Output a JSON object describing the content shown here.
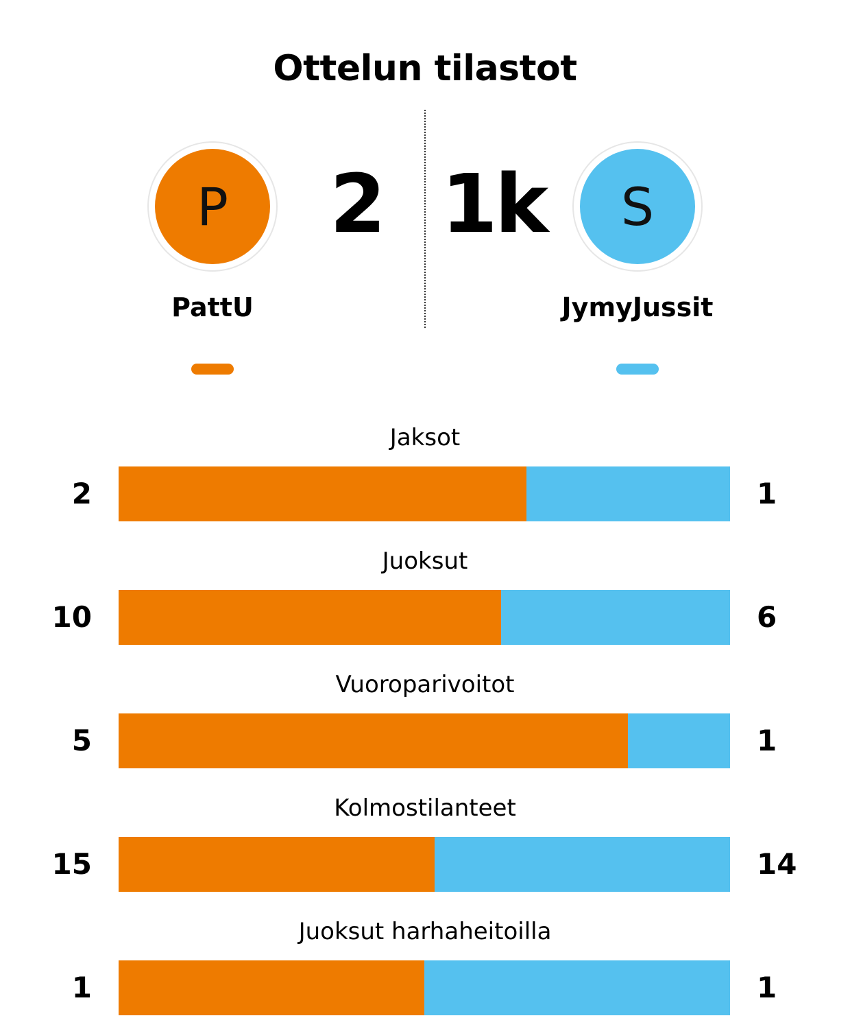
{
  "title": "Ottelun tilastot",
  "home": {
    "name": "PattU",
    "logo_letter": "P",
    "score": "2",
    "color": "#EE7B00"
  },
  "away": {
    "name": "JymyJussit",
    "logo_letter": "S",
    "score": "1k",
    "color": "#55C1EF"
  },
  "chart_data": {
    "type": "bar",
    "orientation": "horizontal",
    "stacked": "percent",
    "categories": [
      "Jaksot",
      "Juoksut",
      "Vuoroparivoitot",
      "Kolmostilanteet",
      "Juoksut harhaheitoilla"
    ],
    "series": [
      {
        "name": "PattU",
        "values": [
          2,
          10,
          5,
          15,
          1
        ],
        "color": "#EE7B00"
      },
      {
        "name": "JymyJussit",
        "values": [
          1,
          6,
          1,
          14,
          1
        ],
        "color": "#55C1EF"
      }
    ],
    "legend": "top"
  }
}
